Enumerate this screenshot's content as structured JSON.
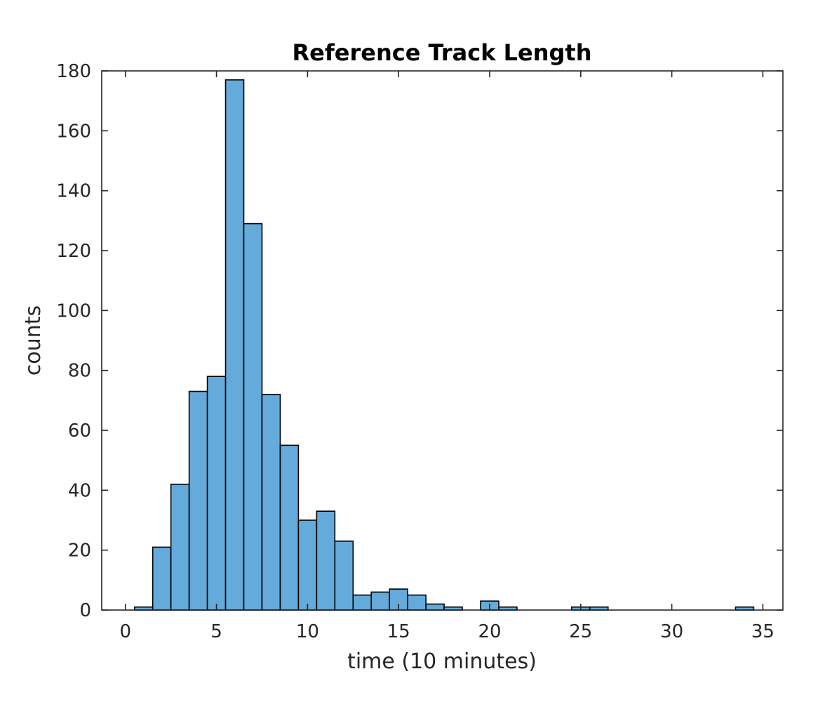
{
  "chart_data": {
    "type": "bar",
    "title": "Reference Track Length",
    "xlabel": "time (10 minutes)",
    "ylabel": "counts",
    "xlim": [
      -1.3,
      36.1
    ],
    "ylim": [
      0,
      180
    ],
    "xticks": [
      0,
      5,
      10,
      15,
      20,
      25,
      30,
      35
    ],
    "yticks": [
      0,
      20,
      40,
      60,
      80,
      100,
      120,
      140,
      160,
      180
    ],
    "grid": false,
    "bar_color": "#64aadb",
    "edge_color": "#000000",
    "bin_width": 1,
    "bins": [
      {
        "x": 1,
        "count": 1
      },
      {
        "x": 2,
        "count": 21
      },
      {
        "x": 3,
        "count": 42
      },
      {
        "x": 4,
        "count": 73
      },
      {
        "x": 5,
        "count": 78
      },
      {
        "x": 6,
        "count": 177
      },
      {
        "x": 7,
        "count": 129
      },
      {
        "x": 8,
        "count": 72
      },
      {
        "x": 9,
        "count": 55
      },
      {
        "x": 10,
        "count": 30
      },
      {
        "x": 11,
        "count": 33
      },
      {
        "x": 12,
        "count": 23
      },
      {
        "x": 13,
        "count": 5
      },
      {
        "x": 14,
        "count": 6
      },
      {
        "x": 15,
        "count": 7
      },
      {
        "x": 16,
        "count": 5
      },
      {
        "x": 17,
        "count": 2
      },
      {
        "x": 18,
        "count": 1
      },
      {
        "x": 20,
        "count": 3
      },
      {
        "x": 21,
        "count": 1
      },
      {
        "x": 25,
        "count": 1
      },
      {
        "x": 26,
        "count": 1
      },
      {
        "x": 34,
        "count": 1
      }
    ]
  }
}
